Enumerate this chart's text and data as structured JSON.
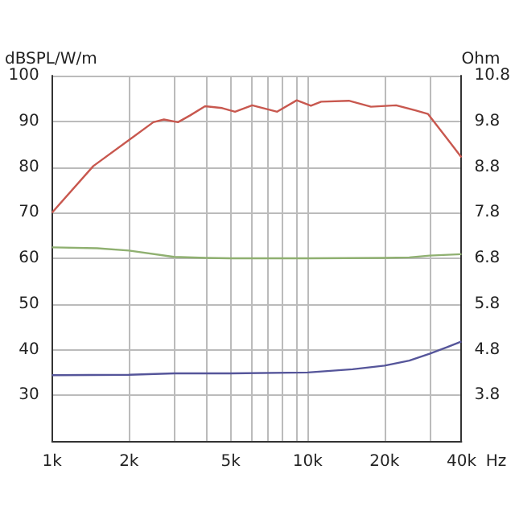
{
  "chart_data": {
    "type": "line",
    "ylabel": "dBSPL/W/m",
    "y2label": "Ohm",
    "log": "x",
    "grid": true,
    "marker": "none",
    "xlim": [
      1000,
      40000
    ],
    "xticks": [
      {
        "value": 1000,
        "label": "1k"
      },
      {
        "value": 2000,
        "label": "2k"
      },
      {
        "value": 3000,
        "label": null
      },
      {
        "value": 4000,
        "label": null
      },
      {
        "value": 5000,
        "label": "5k"
      },
      {
        "value": 6000,
        "label": null
      },
      {
        "value": 7000,
        "label": null
      },
      {
        "value": 8000,
        "label": null
      },
      {
        "value": 9000,
        "label": null
      },
      {
        "value": 10000,
        "label": "10k"
      },
      {
        "value": 20000,
        "label": "20k"
      },
      {
        "value": 30000,
        "label": null
      },
      {
        "value": 40000,
        "label": "40k"
      }
    ],
    "xlabel": "Hz",
    "ylim": [
      20,
      100
    ],
    "yticks": [
      {
        "value": 20,
        "label": null
      },
      30,
      40,
      50,
      60,
      70,
      80,
      90,
      100
    ],
    "y2lim": [
      2.8,
      10.8
    ],
    "y2ticks": [
      3.8,
      4.8,
      5.8,
      6.8,
      7.8,
      8.8,
      9.8,
      10.8
    ],
    "series": [
      {
        "color": "#c8584f",
        "x": [
          1000,
          1450,
          2000,
          2490,
          2740,
          3110,
          3470,
          3970,
          4630,
          5200,
          6070,
          7600,
          9070,
          10300,
          11300,
          14500,
          17700,
          22200,
          26400,
          29600,
          34700,
          40000
        ],
        "values": [
          70,
          80.2,
          85.9,
          89.8,
          90.4,
          89.8,
          91.3,
          93.3,
          92.9,
          92.1,
          93.5,
          92.1,
          94.6,
          93.4,
          94.3,
          94.5,
          93.2,
          93.5,
          92.4,
          91.6,
          86.6,
          82.1
        ]
      },
      {
        "color": "#8fb070",
        "x": [
          1000,
          1500,
          2000,
          3000,
          4000,
          5000,
          10000,
          20000,
          25000,
          30000,
          40000
        ],
        "values": [
          62.4,
          62.2,
          61.7,
          60.3,
          60.1,
          60.0,
          60.0,
          60.1,
          60.2,
          60.6,
          60.9
        ]
      },
      {
        "color": "#55559a",
        "axis": "y2",
        "x": [
          1000,
          2000,
          3000,
          5000,
          10000,
          15000,
          20000,
          25000,
          30000,
          35000,
          40000
        ],
        "values": [
          4.24,
          4.25,
          4.28,
          4.28,
          4.3,
          4.37,
          4.45,
          4.56,
          4.71,
          4.85,
          4.98
        ]
      }
    ]
  }
}
